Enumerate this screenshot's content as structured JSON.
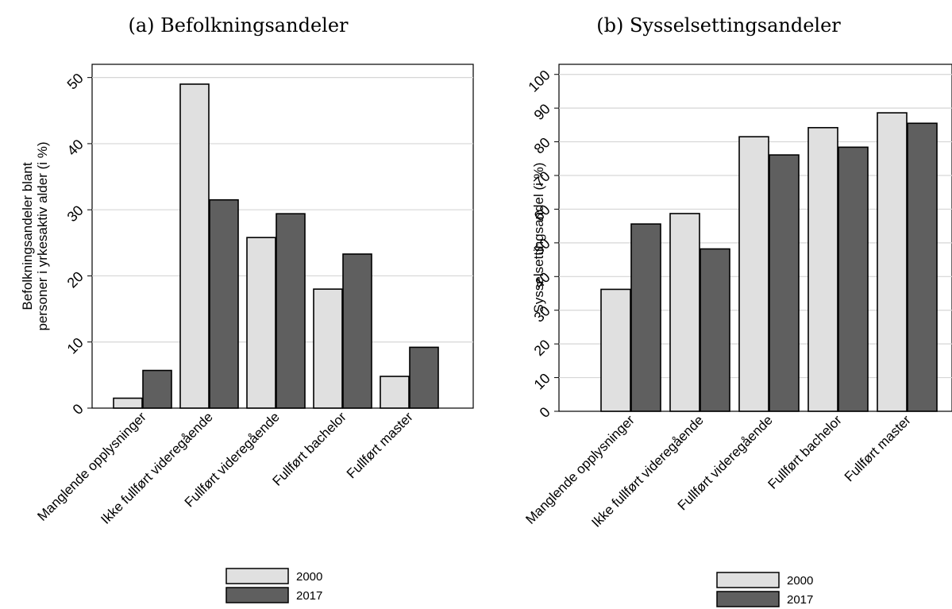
{
  "chart_data": [
    {
      "type": "bar",
      "title": "(a) Befolkningsandeler",
      "ylabel_lines": [
        "Befolkningsandeler blant",
        "personer i yrkesaktiv alder (i %)"
      ],
      "xlabel": "",
      "ylim": [
        0,
        52
      ],
      "yticks": [
        0,
        10,
        20,
        30,
        40,
        50
      ],
      "grid": true,
      "legend_position": "bottom-center",
      "categories": [
        "Manglende opplysninger",
        "Ikke fullført videregående",
        "Fullført videregående",
        "Fullført bachelor",
        "Fullført master"
      ],
      "series": [
        {
          "name": "2000",
          "color": "#e0e0e0",
          "values": [
            1.5,
            49.0,
            25.8,
            18.0,
            4.8
          ]
        },
        {
          "name": "2017",
          "color": "#5f5f5f",
          "values": [
            5.7,
            31.5,
            29.4,
            23.3,
            9.2
          ]
        }
      ]
    },
    {
      "type": "bar",
      "title": "(b) Sysselsettingsandeler",
      "ylabel_lines": [
        "Sysselsettingsandel (i %)"
      ],
      "xlabel": "",
      "ylim": [
        0,
        103
      ],
      "yticks": [
        0,
        10,
        20,
        30,
        40,
        50,
        60,
        70,
        80,
        90,
        100
      ],
      "grid": true,
      "legend_position": "bottom-center",
      "categories": [
        "Manglende opplysninger",
        "Ikke fullført videregående",
        "Fullført videregående",
        "Fullført bachelor",
        "Fullført master"
      ],
      "series": [
        {
          "name": "2000",
          "color": "#e0e0e0",
          "values": [
            36.2,
            58.7,
            81.5,
            84.2,
            88.6
          ]
        },
        {
          "name": "2017",
          "color": "#5f5f5f",
          "values": [
            55.6,
            48.2,
            76.1,
            78.4,
            85.5
          ]
        }
      ]
    }
  ]
}
